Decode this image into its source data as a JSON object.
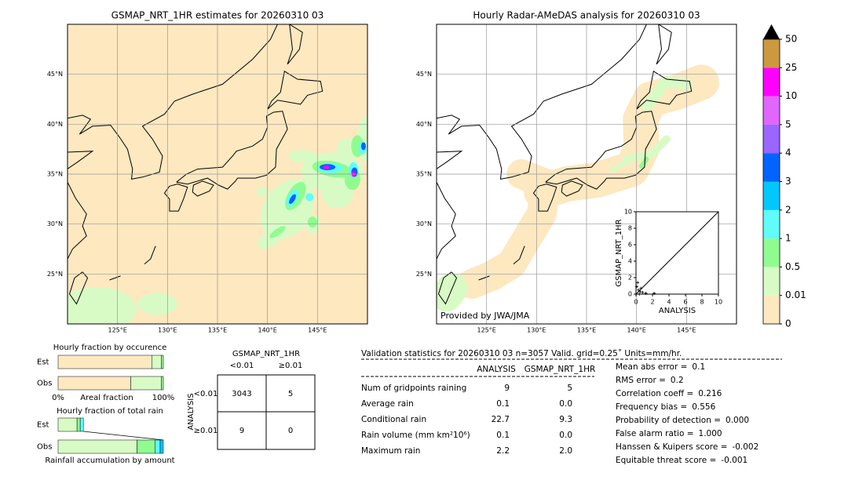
{
  "left_map": {
    "title": "GSMAP_NRT_1HR estimates for 20260310 03",
    "xlim": [
      120,
      150
    ],
    "ylim": [
      20,
      50
    ],
    "xticks": [
      {
        "value": 125,
        "label": "125°E"
      },
      {
        "value": 130,
        "label": "130°E"
      },
      {
        "value": 135,
        "label": "135°E"
      },
      {
        "value": 140,
        "label": "140°E"
      },
      {
        "value": 145,
        "label": "145°E"
      }
    ],
    "yticks": [
      {
        "value": 25,
        "label": "25°N"
      },
      {
        "value": 30,
        "label": "30°N"
      },
      {
        "value": 35,
        "label": "35°N"
      },
      {
        "value": 40,
        "label": "40°N"
      },
      {
        "value": 45,
        "label": "45°N"
      }
    ]
  },
  "right_map": {
    "title": "Hourly Radar-AMeDAS analysis for 20260310 03",
    "credit": "Provided by JWA/JMA",
    "xlim": [
      120,
      150
    ],
    "ylim": [
      20,
      50
    ],
    "xticks": [
      {
        "value": 125,
        "label": "125°E"
      },
      {
        "value": 130,
        "label": "130°E"
      },
      {
        "value": 135,
        "label": "135°E"
      },
      {
        "value": 140,
        "label": "140°E"
      },
      {
        "value": 145,
        "label": "145°E"
      }
    ],
    "yticks": [
      {
        "value": 25,
        "label": "25°N"
      },
      {
        "value": 30,
        "label": "30°N"
      },
      {
        "value": 35,
        "label": "35°N"
      },
      {
        "value": 40,
        "label": "40°N"
      },
      {
        "value": 45,
        "label": "45°N"
      }
    ]
  },
  "colorbar": {
    "levels": [
      0,
      0.01,
      0.5,
      1,
      2,
      3,
      4,
      5,
      10,
      25,
      50
    ],
    "colors": [
      "#fde8c0",
      "#d8fbc6",
      "#90fc90",
      "#60fcfc",
      "#00c8ff",
      "#0064ff",
      "#9966ff",
      "#e066ff",
      "#ff00ff",
      "#cc9940"
    ],
    "extend_color": "#000000"
  },
  "scatter": {
    "xlabel": "ANALYSIS",
    "ylabel": "GSMAP_NRT_1HR",
    "xlim": [
      0,
      10
    ],
    "ylim": [
      0,
      10
    ],
    "xticks": [
      0,
      2,
      4,
      6,
      8,
      10
    ],
    "yticks": [
      0,
      2,
      4,
      6,
      8,
      10
    ],
    "x": [
      0.1,
      0.3,
      0.5,
      0.2,
      0.8,
      1.2,
      0.4,
      2.2,
      0.6
    ],
    "y": [
      0.9,
      0.5,
      0.3,
      1.4,
      0.2,
      0.1,
      0.0,
      0.1,
      0.7
    ]
  },
  "occurrence": {
    "title": "Hourly fraction by occurence",
    "xlabel": "Areal fraction",
    "xticks": [
      {
        "value": 0,
        "label": "0%"
      },
      {
        "value": 100,
        "label": "100%"
      }
    ],
    "bars": [
      {
        "label": "Est",
        "values": [
          89,
          9,
          2
        ],
        "colors": [
          "#fde8c0",
          "#d8fbc6",
          "#90fc90"
        ]
      },
      {
        "label": "Obs",
        "values": [
          69,
          29,
          2
        ],
        "colors": [
          "#fde8c0",
          "#d8fbc6",
          "#90fc90"
        ]
      }
    ]
  },
  "total_rain": {
    "title": "Hourly fraction of total rain",
    "xlabel": "Rainfall accumulation by amount",
    "bars": [
      {
        "label": "Est",
        "values": [
          18,
          3,
          3
        ],
        "colors": [
          "#d8fbc6",
          "#90fc90",
          "#60fcfc"
        ]
      },
      {
        "label": "Obs",
        "values": [
          75,
          17,
          5,
          3
        ],
        "colors": [
          "#d8fbc6",
          "#90fc90",
          "#60fcfc",
          "#00c8ff"
        ]
      }
    ]
  },
  "contingency": {
    "title": "GSMAP_NRT_1HR",
    "columns": [
      "<0.01",
      "≥0.01"
    ],
    "row_title": "ANALYSIS",
    "rows": [
      "<0.01",
      "≥0.01"
    ],
    "cells": [
      [
        3043,
        5
      ],
      [
        9,
        0
      ]
    ]
  },
  "stats": {
    "title": "Validation statistics for 20260310 03  n=3057 Valid. grid=0.25˚ Units=mm/hr.",
    "columns": [
      "ANALYSIS",
      "GSMAP_NRT_1HR"
    ],
    "rows": [
      [
        "Num of gridpoints raining",
        "9",
        "5"
      ],
      [
        "Average rain",
        "0.1",
        "0.0"
      ],
      [
        "Conditional rain",
        "22.7",
        "9.3"
      ],
      [
        "Rain volume (mm km²10⁶)",
        "0.1",
        "0.0"
      ],
      [
        "Maximum rain",
        "2.2",
        "2.0"
      ]
    ]
  },
  "scores": [
    {
      "label": "Mean abs error =",
      "value": "0.1"
    },
    {
      "label": "RMS error =",
      "value": "0.2"
    },
    {
      "label": "Correlation coeff =",
      "value": "0.216"
    },
    {
      "label": "Frequency bias =",
      "value": "0.556"
    },
    {
      "label": "Probability of detection =",
      "value": "0.000"
    },
    {
      "label": "False alarm ratio =",
      "value": "1.000"
    },
    {
      "label": "Hanssen & Kuipers score =",
      "value": "-0.002"
    },
    {
      "label": "Equitable threat score =",
      "value": "-0.001"
    }
  ]
}
